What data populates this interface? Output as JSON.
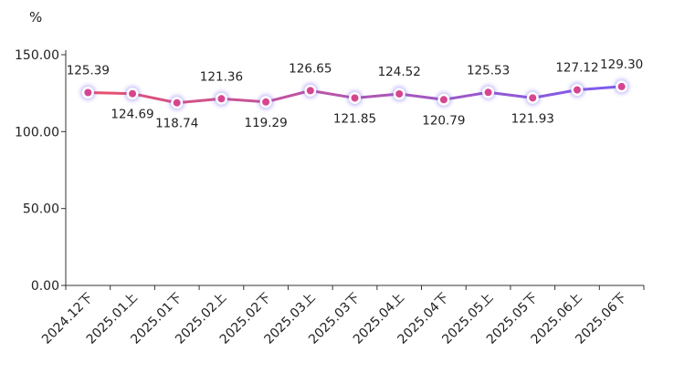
{
  "chart_data": {
    "type": "line",
    "unit": "%",
    "categories": [
      "2024.12下",
      "2025.01上",
      "2025.01下",
      "2025.02上",
      "2025.02下",
      "2025.03上",
      "2025.03下",
      "2025.04上",
      "2025.04下",
      "2025.05上",
      "2025.05下",
      "2025.06上",
      "2025.06下"
    ],
    "series": [
      {
        "values": [
          125.39,
          124.69,
          118.74,
          121.36,
          119.29,
          126.65,
          121.85,
          124.52,
          120.79,
          125.53,
          121.93,
          127.12,
          129.3
        ]
      }
    ],
    "value_labels": [
      "125.39",
      "124.69",
      "118.74",
      "121.36",
      "119.29",
      "126.65",
      "121.85",
      "124.52",
      "120.79",
      "125.53",
      "121.93",
      "127.12",
      "129.30"
    ],
    "yticks": [
      "0.00",
      "50.00",
      "100.00",
      "150.00"
    ],
    "ylim": [
      0,
      150
    ],
    "grid": false,
    "colors": {
      "line_start": "#e8506e",
      "line_end": "#7a5cf0",
      "marker_fill": "#d6458f",
      "marker_ring": "#ffffff",
      "axis": "#333333"
    }
  }
}
